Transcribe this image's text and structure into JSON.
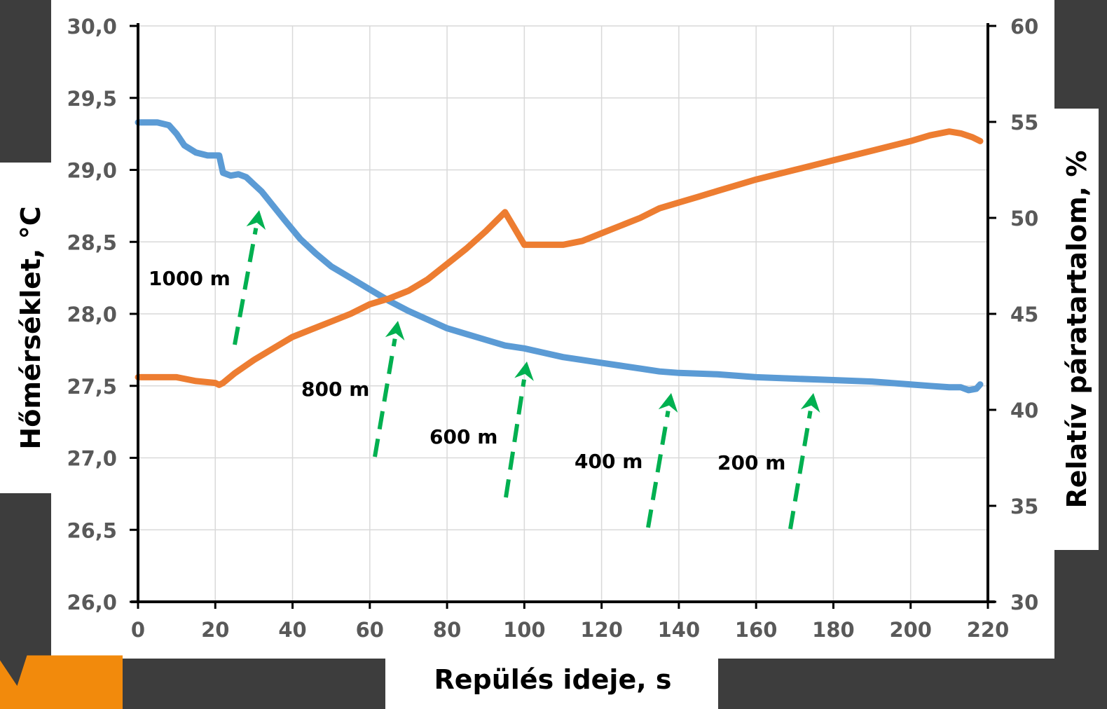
{
  "colors": {
    "background": "#3d3d3d",
    "panel": "#ffffff",
    "temperature_series": "#5b9bd5",
    "humidity_series": "#ed7d31",
    "arrow": "#00b050",
    "grid": "#d9d9d9",
    "accent_shape": "#f28a0c"
  },
  "chart_data": {
    "type": "line",
    "xlabel": "Repülés ideje, s",
    "ylabel_left": "Hőmérséklet, °C",
    "ylabel_right": "Relatív páratartalom, %",
    "xlim": [
      0,
      220
    ],
    "ylim_left": [
      26.0,
      30.0
    ],
    "ylim_right": [
      30,
      60
    ],
    "grid": true,
    "x_ticks": [
      "0",
      "20",
      "40",
      "60",
      "80",
      "100",
      "120",
      "140",
      "160",
      "180",
      "200",
      "220"
    ],
    "y_left_ticks": [
      "26,0",
      "26,5",
      "27,0",
      "27,5",
      "28,0",
      "28,5",
      "29,0",
      "29,5",
      "30,0"
    ],
    "y_right_ticks": [
      "30",
      "35",
      "40",
      "45",
      "50",
      "55",
      "60"
    ],
    "series": [
      {
        "axis": "left",
        "color": "#5b9bd5",
        "x": [
          0,
          5,
          8,
          10,
          12,
          15,
          18,
          20,
          21,
          22,
          24,
          26,
          28,
          30,
          32,
          35,
          38,
          42,
          46,
          50,
          55,
          60,
          65,
          70,
          75,
          80,
          85,
          90,
          95,
          100,
          105,
          110,
          115,
          120,
          125,
          130,
          135,
          140,
          150,
          160,
          170,
          180,
          190,
          200,
          205,
          210,
          213,
          215,
          217,
          218
        ],
        "y": [
          29.33,
          29.33,
          29.31,
          29.25,
          29.17,
          29.12,
          29.1,
          29.1,
          29.1,
          28.98,
          28.96,
          28.97,
          28.95,
          28.9,
          28.85,
          28.75,
          28.65,
          28.52,
          28.42,
          28.33,
          28.25,
          28.17,
          28.09,
          28.02,
          27.96,
          27.9,
          27.86,
          27.82,
          27.78,
          27.76,
          27.73,
          27.7,
          27.68,
          27.66,
          27.64,
          27.62,
          27.6,
          27.59,
          27.58,
          27.56,
          27.55,
          27.54,
          27.53,
          27.51,
          27.5,
          27.49,
          27.49,
          27.47,
          27.48,
          27.51
        ]
      },
      {
        "axis": "right",
        "color": "#ed7d31",
        "x": [
          0,
          5,
          10,
          15,
          20,
          21,
          22,
          25,
          30,
          35,
          40,
          45,
          50,
          55,
          60,
          65,
          70,
          75,
          80,
          85,
          90,
          95,
          100,
          105,
          110,
          115,
          120,
          125,
          130,
          135,
          140,
          145,
          150,
          160,
          170,
          180,
          190,
          200,
          205,
          210,
          213,
          216,
          218
        ],
        "y": [
          41.7,
          41.7,
          41.7,
          41.5,
          41.4,
          41.3,
          41.4,
          41.9,
          42.6,
          43.2,
          43.8,
          44.2,
          44.6,
          45,
          45.5,
          45.8,
          46.2,
          46.8,
          47.6,
          48.4,
          49.3,
          50.3,
          48.6,
          48.6,
          48.6,
          48.8,
          49.2,
          49.6,
          50,
          50.5,
          50.8,
          51.1,
          51.4,
          52,
          52.5,
          53,
          53.5,
          54,
          54.3,
          54.5,
          54.4,
          54.2,
          54
        ]
      }
    ],
    "annotations": [
      {
        "label": "1000 m",
        "x": 25.5
      },
      {
        "label": "800 m",
        "x": 62
      },
      {
        "label": "600 m",
        "x": 95
      },
      {
        "label": "400 m",
        "x": 132
      },
      {
        "label": "200 m",
        "x": 168
      }
    ]
  }
}
